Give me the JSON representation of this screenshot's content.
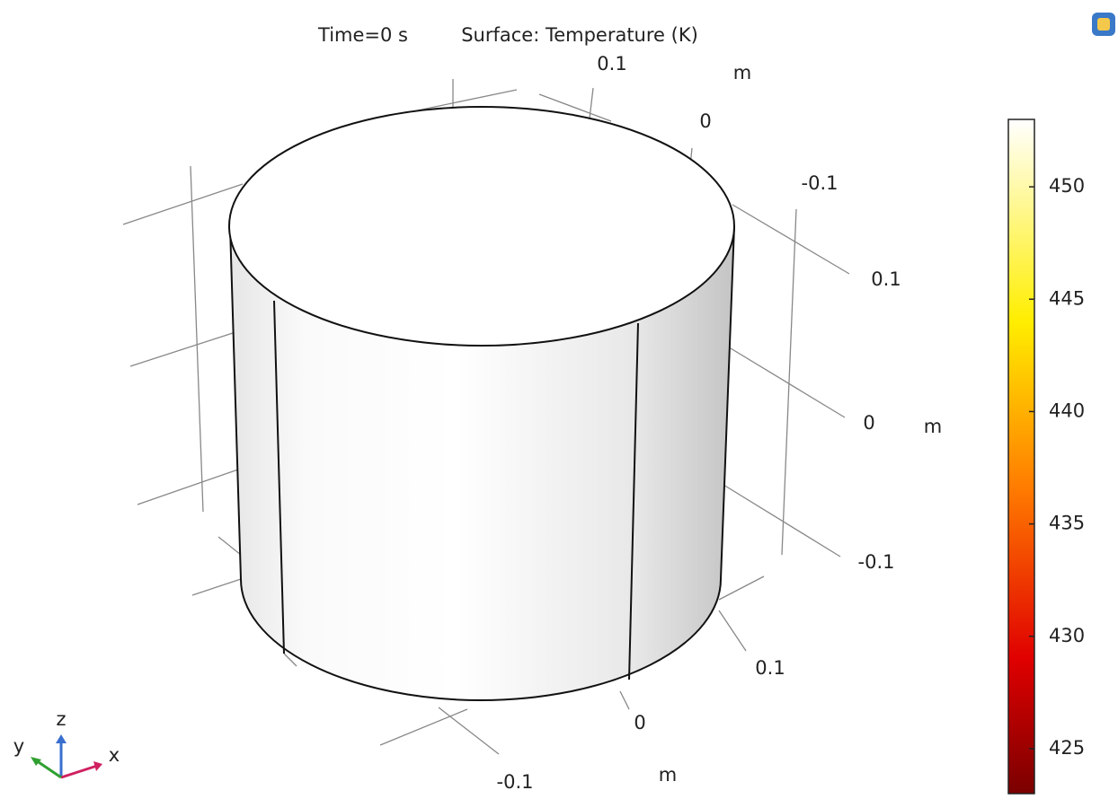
{
  "title": {
    "time": "Time=0 s",
    "expression": "Surface: Temperature (K)"
  },
  "axes": {
    "y_axis": {
      "labels": [
        "0.1",
        "0",
        "-0.1"
      ],
      "unit": "m"
    },
    "z_axis": {
      "labels": [
        "0.1",
        "0",
        "-0.1"
      ],
      "unit": "m"
    },
    "x_axis": {
      "labels": [
        "0.1",
        "0",
        "-0.1"
      ],
      "unit": "m"
    }
  },
  "triad": {
    "z": "z",
    "y": "y",
    "x": "x"
  },
  "colorbar": {
    "range": [
      423,
      453
    ],
    "ticks": [
      425,
      430,
      435,
      440,
      445,
      450
    ]
  }
}
